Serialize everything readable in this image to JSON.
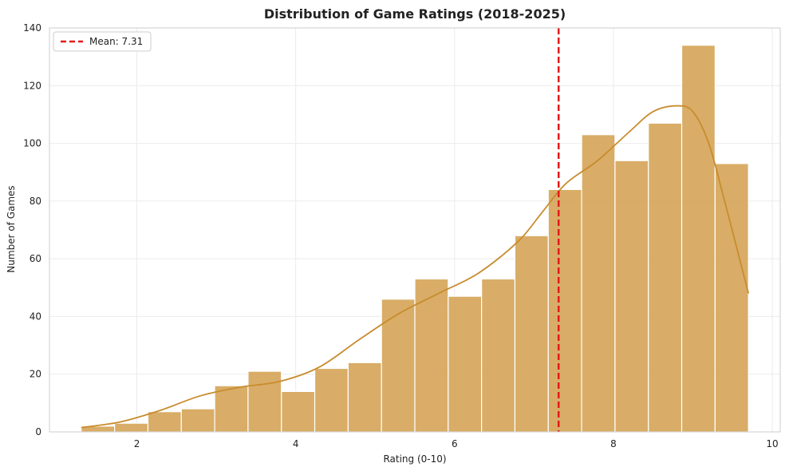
{
  "chart_data": {
    "type": "bar",
    "title": "Distribution of Game Ratings (2018-2025)",
    "xlabel": "Rating (0-10)",
    "ylabel": "Number of Games",
    "xlim": [
      0.9,
      10.1
    ],
    "ylim": [
      0,
      140
    ],
    "xticks": [
      2,
      4,
      6,
      8,
      10
    ],
    "yticks": [
      0,
      20,
      40,
      60,
      80,
      100,
      120,
      140
    ],
    "grid": true,
    "legend_position": "top-left",
    "bins": [
      {
        "x0": 1.3,
        "x1": 1.72,
        "count": 2
      },
      {
        "x0": 1.72,
        "x1": 2.14,
        "count": 3
      },
      {
        "x0": 2.14,
        "x1": 2.56,
        "count": 7
      },
      {
        "x0": 2.56,
        "x1": 2.98,
        "count": 8
      },
      {
        "x0": 2.98,
        "x1": 3.4,
        "count": 16
      },
      {
        "x0": 3.4,
        "x1": 3.82,
        "count": 21
      },
      {
        "x0": 3.82,
        "x1": 4.24,
        "count": 14
      },
      {
        "x0": 4.24,
        "x1": 4.66,
        "count": 22
      },
      {
        "x0": 4.66,
        "x1": 5.08,
        "count": 24
      },
      {
        "x0": 5.08,
        "x1": 5.5,
        "count": 46
      },
      {
        "x0": 5.5,
        "x1": 5.92,
        "count": 53
      },
      {
        "x0": 5.92,
        "x1": 6.34,
        "count": 47
      },
      {
        "x0": 6.34,
        "x1": 6.76,
        "count": 53
      },
      {
        "x0": 6.76,
        "x1": 7.18,
        "count": 68
      },
      {
        "x0": 7.18,
        "x1": 7.6,
        "count": 84
      },
      {
        "x0": 7.6,
        "x1": 8.02,
        "count": 103
      },
      {
        "x0": 8.02,
        "x1": 8.44,
        "count": 94
      },
      {
        "x0": 8.44,
        "x1": 8.86,
        "count": 107
      },
      {
        "x0": 8.86,
        "x1": 9.28,
        "count": 134
      },
      {
        "x0": 9.28,
        "x1": 9.7,
        "count": 93
      }
    ],
    "kde": {
      "x": [
        1.3,
        1.8,
        2.3,
        2.8,
        3.3,
        3.8,
        4.3,
        4.8,
        5.3,
        5.8,
        6.3,
        6.8,
        7.1,
        7.4,
        7.8,
        8.2,
        8.5,
        8.8,
        9.0,
        9.2,
        9.4,
        9.7
      ],
      "y": [
        1.5,
        3.5,
        7.5,
        12.5,
        15.5,
        17.5,
        22.5,
        32,
        41,
        48,
        55,
        66,
        76,
        86,
        94,
        104,
        111,
        113,
        111,
        100,
        80,
        48
      ]
    },
    "mean": {
      "value": 7.31,
      "label": "Mean: 7.31"
    },
    "colors": {
      "bar_fill": "#d4a252",
      "bar_edge": "#ffffff",
      "kde_line": "#c88c2e",
      "mean_line": "#e5191b",
      "grid": "#ebebeb",
      "axis": "#cccccc"
    }
  }
}
